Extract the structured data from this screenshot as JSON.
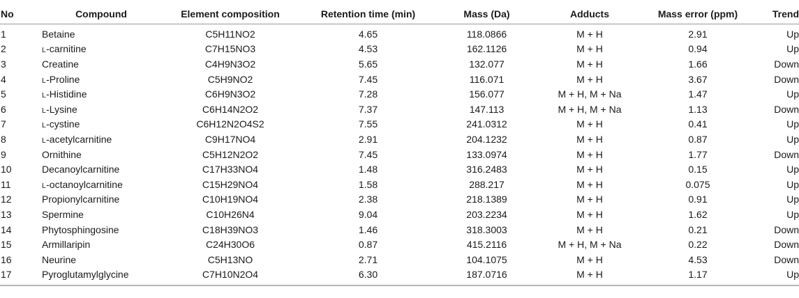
{
  "table": {
    "headers": {
      "no": "No",
      "compound": "Compound",
      "composition": "Element composition",
      "rt": "Retention time (min)",
      "mass": "Mass (Da)",
      "adducts": "Adducts",
      "error": "Mass error (ppm)",
      "trend": "Trend"
    },
    "rows": [
      {
        "no": "1",
        "prefix": "",
        "name": "Betaine",
        "composition": "C5H11NO2",
        "rt": "4.65",
        "mass": "118.0866",
        "adducts": "M + H",
        "error": "2.91",
        "trend": "Up"
      },
      {
        "no": "2",
        "prefix": "L",
        "name": "-carnitine",
        "composition": "C7H15NO3",
        "rt": "4.53",
        "mass": "162.1126",
        "adducts": "M + H",
        "error": "0.94",
        "trend": "Up"
      },
      {
        "no": "3",
        "prefix": "",
        "name": "Creatine",
        "composition": "C4H9N3O2",
        "rt": "5.65",
        "mass": "132.077",
        "adducts": "M + H",
        "error": "1.66",
        "trend": "Down"
      },
      {
        "no": "4",
        "prefix": "L",
        "name": "-Proline",
        "composition": "C5H9NO2",
        "rt": "7.45",
        "mass": "116.071",
        "adducts": "M + H",
        "error": "3.67",
        "trend": "Down"
      },
      {
        "no": "5",
        "prefix": "L",
        "name": "-Histidine",
        "composition": "C6H9N3O2",
        "rt": "7.28",
        "mass": "156.077",
        "adducts": "M + H, M + Na",
        "error": "1.47",
        "trend": "Up"
      },
      {
        "no": "6",
        "prefix": "L",
        "name": "-Lysine",
        "composition": "C6H14N2O2",
        "rt": "7.37",
        "mass": "147.113",
        "adducts": "M + H, M + Na",
        "error": "1.13",
        "trend": "Down"
      },
      {
        "no": "7",
        "prefix": "L",
        "name": "-cystine",
        "composition": "C6H12N2O4S2",
        "rt": "7.55",
        "mass": "241.0312",
        "adducts": "M + H",
        "error": "0.41",
        "trend": "Up"
      },
      {
        "no": "8",
        "prefix": "L",
        "name": "-acetylcarnitine",
        "composition": "C9H17NO4",
        "rt": "2.91",
        "mass": "204.1232",
        "adducts": "M + H",
        "error": "0.87",
        "trend": "Up"
      },
      {
        "no": "9",
        "prefix": "",
        "name": "Ornithine",
        "composition": "C5H12N2O2",
        "rt": "7.45",
        "mass": "133.0974",
        "adducts": "M + H",
        "error": "1.77",
        "trend": "Down"
      },
      {
        "no": "10",
        "prefix": "",
        "name": "Decanoylcarnitine",
        "composition": "C17H33NO4",
        "rt": "1.48",
        "mass": "316.2483",
        "adducts": "M + H",
        "error": "0.15",
        "trend": "Up"
      },
      {
        "no": "11",
        "prefix": "L",
        "name": "-octanoylcarnitine",
        "composition": "C15H29NO4",
        "rt": "1.58",
        "mass": "288.217",
        "adducts": "M + H",
        "error": "0.075",
        "trend": "Up"
      },
      {
        "no": "12",
        "prefix": "",
        "name": "Propionylcarnitine",
        "composition": "C10H19NO4",
        "rt": "2.38",
        "mass": "218.1389",
        "adducts": "M + H",
        "error": "0.91",
        "trend": "Up"
      },
      {
        "no": "13",
        "prefix": "",
        "name": "Spermine",
        "composition": "C10H26N4",
        "rt": "9.04",
        "mass": "203.2234",
        "adducts": "M + H",
        "error": "1.62",
        "trend": "Up"
      },
      {
        "no": "14",
        "prefix": "",
        "name": "Phytosphingosine",
        "composition": "C18H39NO3",
        "rt": "1.46",
        "mass": "318.3003",
        "adducts": "M + H",
        "error": "0.21",
        "trend": "Down"
      },
      {
        "no": "15",
        "prefix": "",
        "name": "Armillaripin",
        "composition": "C24H30O6",
        "rt": "0.87",
        "mass": "415.2116",
        "adducts": "M + H, M + Na",
        "error": "0.22",
        "trend": "Down"
      },
      {
        "no": "16",
        "prefix": "",
        "name": "Neurine",
        "composition": "C5H13NO",
        "rt": "2.71",
        "mass": "104.1075",
        "adducts": "M + H",
        "error": "4.53",
        "trend": "Down"
      },
      {
        "no": "17",
        "prefix": "",
        "name": "Pyroglutamylglycine",
        "composition": "C7H10N2O4",
        "rt": "6.30",
        "mass": "187.0716",
        "adducts": "M + H",
        "error": "1.17",
        "trend": "Up"
      }
    ]
  }
}
